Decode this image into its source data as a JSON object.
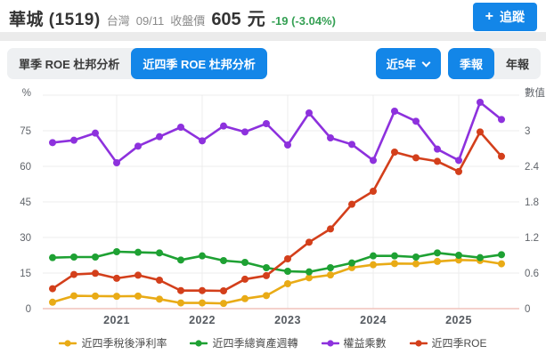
{
  "header": {
    "stock_name": "華城 (1519)",
    "market": "台灣",
    "date": "09/11",
    "price_label": "收盤價",
    "price": "605",
    "currency": "元",
    "change": "-19 (-3.04%)",
    "plus_icon": "+",
    "follow_label": "追蹤"
  },
  "toolbar": {
    "tab_single_quarter": "單季 ROE 杜邦分析",
    "tab_trailing_four": "近四季 ROE 杜邦分析",
    "range_selector": "近5年",
    "period_quarter": "季報",
    "period_year": "年報"
  },
  "colors": {
    "accent_blue": "#1386e8",
    "change_green": "#35a054",
    "grid": "#ececec",
    "zero_line": "#f0c2bb"
  },
  "chart_data": {
    "type": "line",
    "title": "近四季 ROE 杜邦分析",
    "left_axis": {
      "title": "%",
      "ticks": [
        0,
        15,
        30,
        45,
        60,
        75
      ],
      "max": 90
    },
    "right_axis": {
      "title": "數值",
      "ticks": [
        0,
        0.6,
        1.2,
        1.8,
        2.4,
        3
      ],
      "max": 3.6
    },
    "x_year_ticks": [
      {
        "label": "2021",
        "index": 3
      },
      {
        "label": "2022",
        "index": 7
      },
      {
        "label": "2023",
        "index": 11
      },
      {
        "label": "2024",
        "index": 15
      },
      {
        "label": "2025",
        "index": 19
      }
    ],
    "grid_on": true,
    "legend_position": "bottom",
    "grid_color": "#ececec",
    "zero_line_color": "#f0c2bb",
    "series": [
      {
        "key": "net-margin",
        "name": "近四季稅後淨利率",
        "color": "#e9ab16",
        "axis": "left",
        "values": [
          2.7,
          5.4,
          5.3,
          5.2,
          5.3,
          4.0,
          2.4,
          2.4,
          2.2,
          4.2,
          5.5,
          10.5,
          13.0,
          14.2,
          17.3,
          18.5,
          19.0,
          18.9,
          19.9,
          20.5,
          20.3,
          18.9
        ]
      },
      {
        "key": "asset-turnover",
        "name": "近四季總資產週轉",
        "color": "#1ea133",
        "axis": "right",
        "values": [
          0.86,
          0.87,
          0.87,
          0.96,
          0.95,
          0.94,
          0.82,
          0.89,
          0.81,
          0.78,
          0.69,
          0.63,
          0.62,
          0.69,
          0.77,
          0.89,
          0.89,
          0.87,
          0.94,
          0.9,
          0.86,
          0.91
        ]
      },
      {
        "key": "equity-multiplier",
        "name": "權益乘數",
        "color": "#8d31dd",
        "axis": "right",
        "values": [
          2.8,
          2.84,
          2.96,
          2.46,
          2.74,
          2.9,
          3.06,
          2.83,
          3.08,
          2.98,
          3.12,
          2.76,
          3.3,
          2.88,
          2.77,
          2.5,
          3.33,
          3.16,
          2.69,
          2.5,
          3.48,
          3.19
        ]
      },
      {
        "key": "roe",
        "name": "近四季ROE",
        "color": "#d33f1b",
        "axis": "left",
        "values": [
          8.4,
          14.4,
          14.9,
          12.8,
          14.1,
          12.0,
          7.6,
          7.6,
          7.5,
          12.4,
          13.9,
          21.0,
          28.0,
          33.6,
          44.0,
          49.5,
          66.0,
          63.6,
          62.1,
          57.8,
          74.5,
          64.2
        ]
      }
    ]
  }
}
